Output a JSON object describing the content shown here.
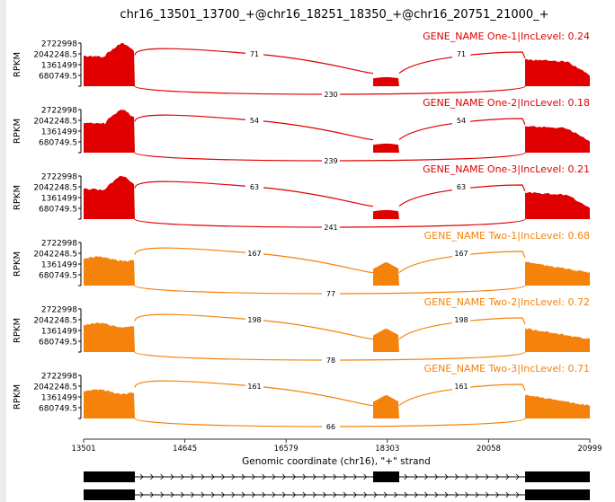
{
  "chart_data": {
    "type": "sashimi",
    "title": "chr16_13501_13700_+@chr16_18251_18350_+@chr16_20751_21000_+",
    "xlabel": "Genomic coordinate (chr16), \"+\" strand",
    "ylabel": "RPKM",
    "xticks": [
      "13501",
      "14645",
      "16579",
      "18303",
      "20058",
      "20999"
    ],
    "yticks": [
      "2722998",
      "2042248.5",
      "1361499",
      "680749.5"
    ],
    "ylim": [
      0,
      2722998
    ],
    "samples": [
      {
        "label": "GENE_NAME One-1|IncLevel: 0.24",
        "color": "#e00000",
        "inclusion_left": 71,
        "inclusion_right": 71,
        "skipping": 230
      },
      {
        "label": "GENE_NAME One-2|IncLevel: 0.18",
        "color": "#e00000",
        "inclusion_left": 54,
        "inclusion_right": 54,
        "skipping": 239
      },
      {
        "label": "GENE_NAME One-3|IncLevel: 0.21",
        "color": "#e00000",
        "inclusion_left": 63,
        "inclusion_right": 63,
        "skipping": 241
      },
      {
        "label": "GENE_NAME Two-1|IncLevel: 0.68",
        "color": "#f5820a",
        "inclusion_left": 167,
        "inclusion_right": 167,
        "skipping": 77
      },
      {
        "label": "GENE_NAME Two-2|IncLevel: 0.72",
        "color": "#f5820a",
        "inclusion_left": 198,
        "inclusion_right": 198,
        "skipping": 78
      },
      {
        "label": "GENE_NAME Two-3|IncLevel: 0.71",
        "color": "#f5820a",
        "inclusion_left": 161,
        "inclusion_right": 161,
        "skipping": 66
      }
    ],
    "isoforms": [
      {
        "exons": [
          [
            13501,
            13700
          ],
          [
            18251,
            18350
          ],
          [
            20751,
            21000
          ]
        ],
        "strand": "+"
      },
      {
        "exons": [
          [
            13501,
            13700
          ],
          [
            20751,
            21000
          ]
        ],
        "strand": "+"
      }
    ]
  }
}
